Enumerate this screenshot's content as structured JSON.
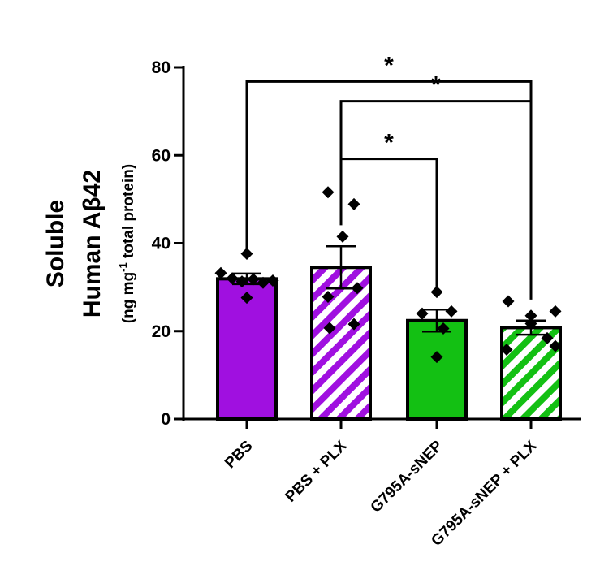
{
  "chart_data": {
    "type": "bar",
    "ylabel": {
      "line1": "Soluble",
      "line2": "Human Aβ42",
      "units_prefix": "(ng mg",
      "units_sup": "-1",
      "units_suffix": " total protein)"
    },
    "ylim": [
      0,
      80
    ],
    "yticks": [
      "0",
      "20",
      "40",
      "60",
      "80"
    ],
    "categories": [
      "PBS",
      "PBS + PLX",
      "G795A-sNEP",
      "G795A-sNEP + PLX"
    ],
    "values": [
      31.9,
      34.5,
      22.4,
      20.8
    ],
    "sem": [
      1.2,
      4.8,
      2.5,
      1.6
    ],
    "fill_colors": [
      "#a010e0",
      "#a010e0",
      "#13c013",
      "#13c013"
    ],
    "patterns": [
      "solid",
      "hatched",
      "solid",
      "hatched"
    ],
    "points": [
      [
        33.2,
        37.6,
        32.0,
        31.3,
        27.6,
        31.8,
        31.0,
        31.5
      ],
      [
        51.6,
        48.9,
        41.5,
        27.8,
        29.8,
        20.7,
        21.6
      ],
      [
        28.9,
        24.0,
        24.5,
        20.6,
        14.1
      ],
      [
        26.8,
        23.5,
        24.5,
        21.7,
        18.4,
        15.8,
        16.6
      ]
    ],
    "comparisons": [
      {
        "from": 0,
        "to": 3,
        "y": 76.8,
        "label": "*"
      },
      {
        "from": 1,
        "to": 3,
        "y": 72.3,
        "label": "*"
      },
      {
        "from": 1,
        "to": 2,
        "y": 59.2,
        "label": "*"
      }
    ]
  }
}
